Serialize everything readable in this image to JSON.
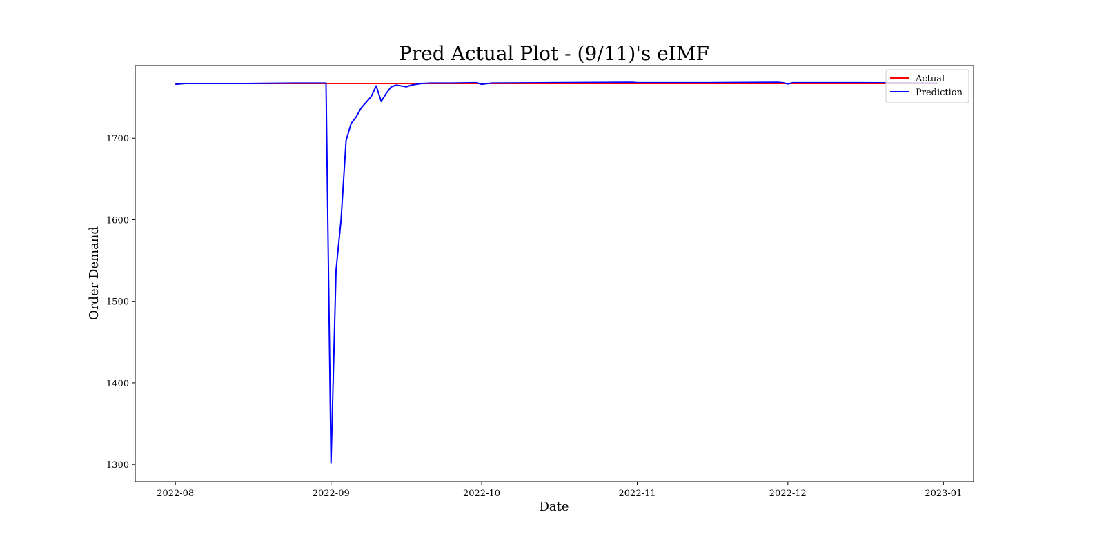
{
  "chart_data": {
    "type": "line",
    "title": "Pred Actual Plot - (9/11)'s eIMF",
    "xlabel": "Date",
    "ylabel": "Order Demand",
    "x_ticks": [
      "2022-08",
      "2022-09",
      "2022-10",
      "2022-11",
      "2022-12",
      "2023-01"
    ],
    "x_tick_dates": [
      "2022-08-01",
      "2022-09-01",
      "2022-10-01",
      "2022-11-01",
      "2022-12-01",
      "2023-01-01"
    ],
    "y_ticks": [
      1300,
      1400,
      1500,
      1600,
      1700
    ],
    "xlim": [
      "2022-07-24",
      "2023-01-07"
    ],
    "ylim": [
      1279,
      1789
    ],
    "grid": false,
    "legend_position": "top-right",
    "series": [
      {
        "name": "Actual",
        "color": "#ff0000",
        "points": [
          [
            "2022-08-01",
            1767
          ],
          [
            "2022-12-31",
            1767
          ]
        ]
      },
      {
        "name": "Prediction",
        "color": "#0000ff",
        "points": [
          [
            "2022-08-01",
            1766
          ],
          [
            "2022-08-03",
            1767
          ],
          [
            "2022-08-15",
            1767
          ],
          [
            "2022-08-25",
            1767.5
          ],
          [
            "2022-08-31",
            1767.5
          ],
          [
            "2022-09-01",
            1302
          ],
          [
            "2022-09-02",
            1538
          ],
          [
            "2022-09-03",
            1600
          ],
          [
            "2022-09-04",
            1697
          ],
          [
            "2022-09-05",
            1718
          ],
          [
            "2022-09-06",
            1726
          ],
          [
            "2022-09-07",
            1737
          ],
          [
            "2022-09-08",
            1744
          ],
          [
            "2022-09-09",
            1751
          ],
          [
            "2022-09-10",
            1764
          ],
          [
            "2022-09-11",
            1745
          ],
          [
            "2022-09-12",
            1755
          ],
          [
            "2022-09-13",
            1763
          ],
          [
            "2022-09-14",
            1765
          ],
          [
            "2022-09-15",
            1764
          ],
          [
            "2022-09-16",
            1763
          ],
          [
            "2022-09-17",
            1765
          ],
          [
            "2022-09-18",
            1766
          ],
          [
            "2022-09-19",
            1767
          ],
          [
            "2022-09-21",
            1767.5
          ],
          [
            "2022-09-25",
            1767.5
          ],
          [
            "2022-09-30",
            1768
          ],
          [
            "2022-10-01",
            1766
          ],
          [
            "2022-10-03",
            1767.5
          ],
          [
            "2022-10-15",
            1768
          ],
          [
            "2022-10-31",
            1768.5
          ],
          [
            "2022-11-01",
            1768
          ],
          [
            "2022-11-15",
            1768
          ],
          [
            "2022-11-29",
            1768.5
          ],
          [
            "2022-11-30",
            1768
          ],
          [
            "2022-12-01",
            1766.5
          ],
          [
            "2022-12-02",
            1768
          ],
          [
            "2022-12-15",
            1768
          ],
          [
            "2022-12-31",
            1767.5
          ]
        ]
      }
    ]
  }
}
